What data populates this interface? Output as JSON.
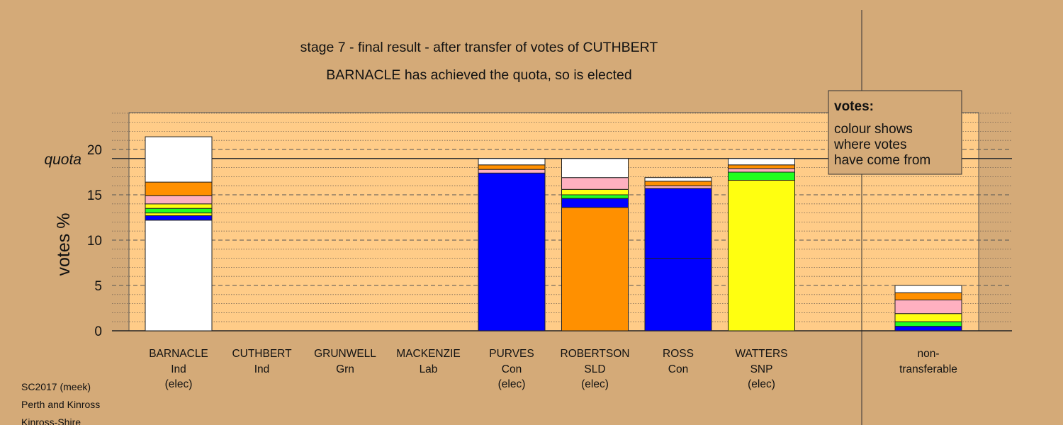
{
  "chart_data": {
    "type": "bar",
    "title": "stage 7 - final result - after transfer of votes of CUTHBERT",
    "subtitle": "BARNACLE has achieved the quota, so is elected",
    "ylabel": "votes %",
    "quota_label": "quota",
    "quota_value": 19.0,
    "ylim": [
      0,
      24
    ],
    "yticks": [
      "0",
      "5",
      "10",
      "15",
      "20"
    ],
    "grid": true,
    "legend": {
      "position": "top-right",
      "title": "votes:",
      "lines": [
        "colour shows",
        "where votes",
        "have come from"
      ]
    },
    "colors": {
      "background": "#d4aa78",
      "plot_area": "#ffcc88",
      "Ind": "#ffffff",
      "SLD": "#ff9000",
      "Lab": "#ffb0c0",
      "SNP": "#ffff10",
      "Grn": "#20ff20",
      "Con": "#0000ff"
    },
    "categories": [
      {
        "name": "BARNACLE",
        "party": "Ind",
        "status": "(elec)"
      },
      {
        "name": "CUTHBERT",
        "party": "Ind",
        "status": ""
      },
      {
        "name": "GRUNWELL",
        "party": "Grn",
        "status": ""
      },
      {
        "name": "MACKENZIE",
        "party": "Lab",
        "status": ""
      },
      {
        "name": "PURVES",
        "party": "Con",
        "status": "(elec)"
      },
      {
        "name": "ROBERTSON",
        "party": "SLD",
        "status": "(elec)"
      },
      {
        "name": "ROSS",
        "party": "Con",
        "status": ""
      },
      {
        "name": "WATTERS",
        "party": "SNP",
        "status": "(elec)"
      }
    ],
    "bars": [
      {
        "segments": [
          [
            "Ind",
            12.2
          ],
          [
            "Con",
            0.5
          ],
          [
            "SNP",
            0.3
          ],
          [
            "Grn",
            0.5
          ],
          [
            "SNP",
            0.5
          ],
          [
            "Lab",
            0.9
          ],
          [
            "SLD",
            1.5
          ],
          [
            "Ind",
            5.0
          ]
        ]
      },
      {
        "segments": []
      },
      {
        "segments": []
      },
      {
        "segments": []
      },
      {
        "segments": [
          [
            "Con",
            17.4
          ],
          [
            "Lab",
            0.4
          ],
          [
            "SLD",
            0.5
          ],
          [
            "Ind",
            0.7
          ]
        ]
      },
      {
        "segments": [
          [
            "SLD",
            13.6
          ],
          [
            "Con",
            1.0
          ],
          [
            "Grn",
            0.4
          ],
          [
            "SNP",
            0.6
          ],
          [
            "Lab",
            1.3
          ],
          [
            "Ind",
            2.1
          ]
        ]
      },
      {
        "segments": [
          [
            "Con",
            8.0
          ],
          [
            "Con",
            7.7
          ],
          [
            "Lab",
            0.3
          ],
          [
            "SLD",
            0.5
          ],
          [
            "Ind",
            0.4
          ]
        ]
      },
      {
        "segments": [
          [
            "SNP",
            16.6
          ],
          [
            "Grn",
            0.9
          ],
          [
            "Lab",
            0.4
          ],
          [
            "SLD",
            0.4
          ],
          [
            "Ind",
            0.7
          ]
        ]
      }
    ],
    "nontransferable": {
      "label_line1": "non-",
      "label_line2": "transferable",
      "segments": [
        [
          "Con",
          0.5
        ],
        [
          "Grn",
          0.5
        ],
        [
          "SNP",
          0.9
        ],
        [
          "Lab",
          1.5
        ],
        [
          "SLD",
          0.8
        ],
        [
          "Ind",
          0.8
        ]
      ]
    }
  },
  "footer": {
    "lines": [
      "SC2017 (meek)",
      "Perth and Kinross",
      "Kinross-Shire"
    ]
  }
}
